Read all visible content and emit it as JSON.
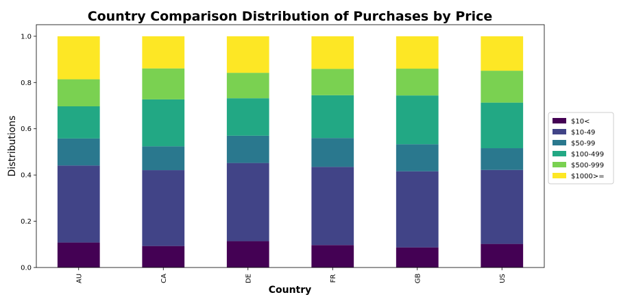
{
  "chart_data": {
    "type": "bar",
    "stacked": true,
    "title": "Country Comparison Distribution of Purchases by Price",
    "xlabel": "Country",
    "ylabel": "Distributions",
    "ylim": [
      0,
      1.05
    ],
    "yticks": [
      "0.0",
      "0.2",
      "0.4",
      "0.6",
      "0.8",
      "1.0"
    ],
    "categories": [
      "AU",
      "CA",
      "DE",
      "FR",
      "GB",
      "US"
    ],
    "legend_position": "right",
    "series": [
      {
        "name": "$10<",
        "color": "#440154",
        "values": [
          0.108,
          0.093,
          0.114,
          0.097,
          0.087,
          0.102
        ]
      },
      {
        "name": "$10-49",
        "color": "#414487",
        "values": [
          0.333,
          0.328,
          0.338,
          0.338,
          0.329,
          0.32
        ]
      },
      {
        "name": "$50-99",
        "color": "#2a788e",
        "values": [
          0.117,
          0.103,
          0.118,
          0.125,
          0.117,
          0.094
        ]
      },
      {
        "name": "$100-499",
        "color": "#22a884",
        "values": [
          0.139,
          0.203,
          0.162,
          0.185,
          0.211,
          0.197
        ]
      },
      {
        "name": "$500-999",
        "color": "#7ad151",
        "values": [
          0.117,
          0.134,
          0.11,
          0.114,
          0.116,
          0.138
        ]
      },
      {
        "name": "$1000>=",
        "color": "#fde725",
        "values": [
          0.186,
          0.139,
          0.158,
          0.141,
          0.14,
          0.149
        ]
      }
    ]
  }
}
